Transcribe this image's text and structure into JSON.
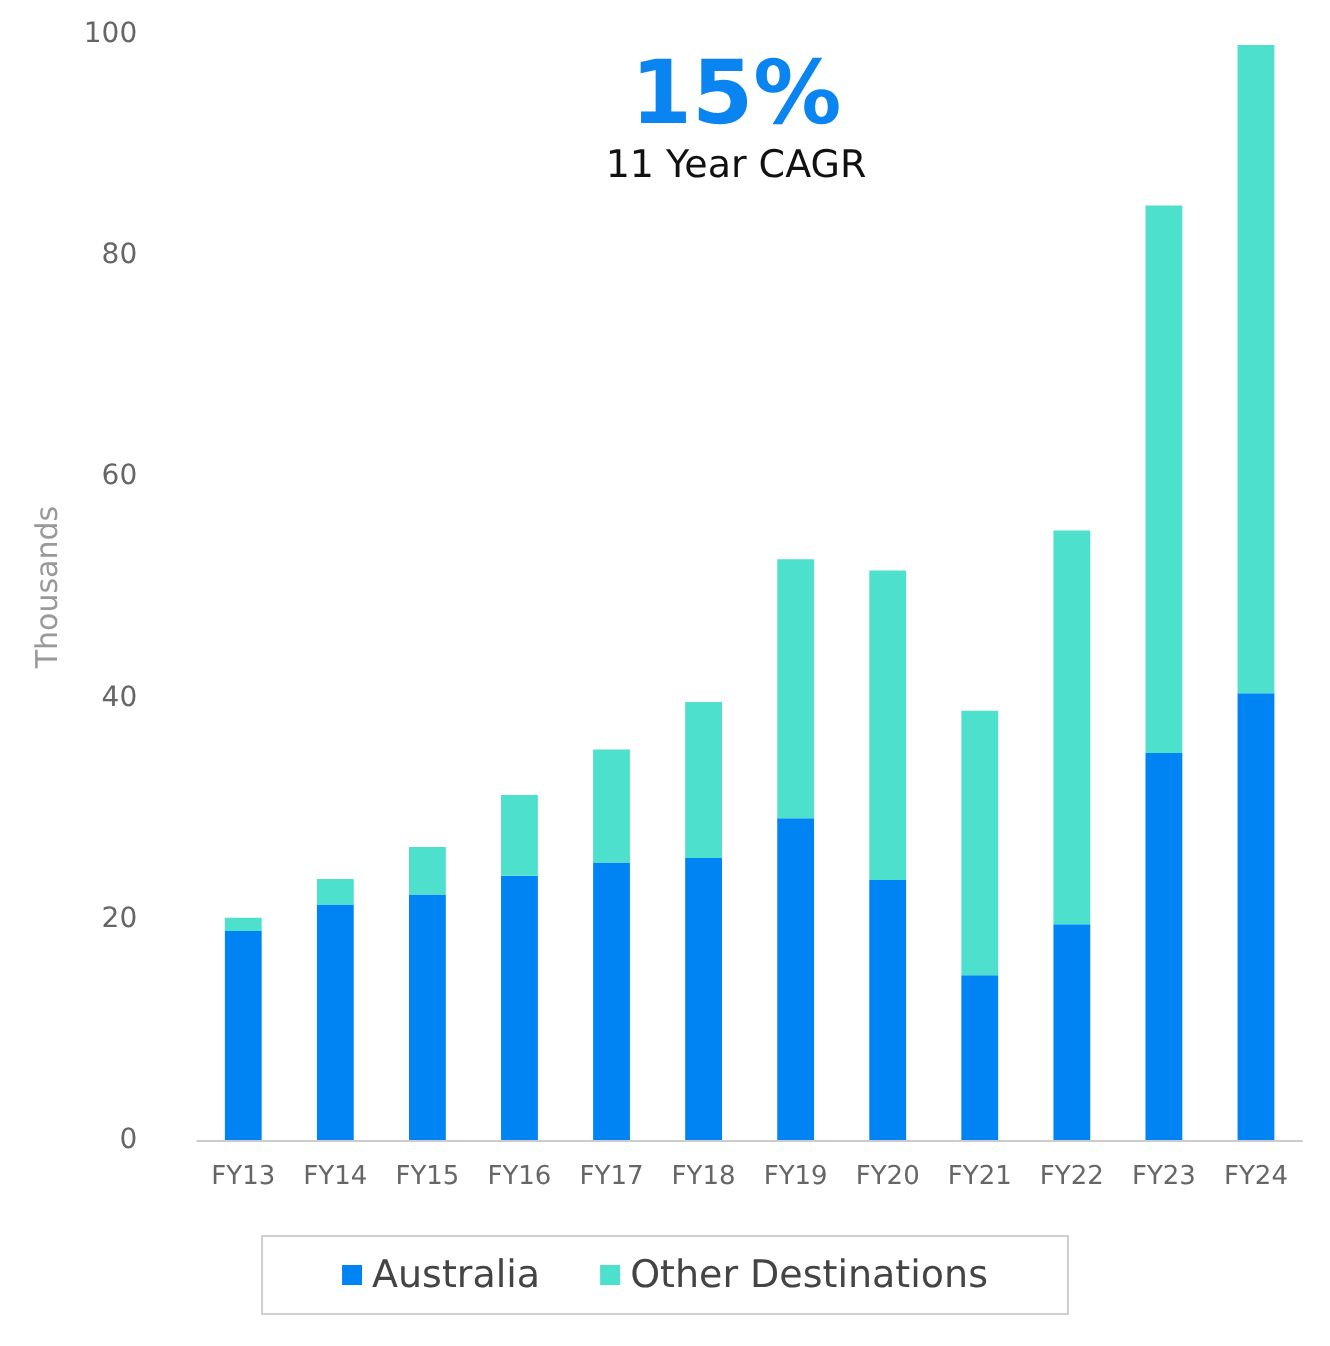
{
  "chart_data": {
    "type": "bar",
    "stacked": true,
    "title": "15%",
    "subtitle": "11 Year CAGR",
    "ylabel": "Thousands",
    "categories": [
      "FY13",
      "FY14",
      "FY15",
      "FY16",
      "FY17",
      "FY18",
      "FY19",
      "FY20",
      "FY21",
      "FY22",
      "FY23",
      "FY24"
    ],
    "series": [
      {
        "name": "Australia",
        "color": "#0084f4",
        "values": [
          18.9,
          21.3,
          22.2,
          23.9,
          25.1,
          25.5,
          29.1,
          23.5,
          14.9,
          19.5,
          35.0,
          40.4
        ]
      },
      {
        "name": "Other Destinations",
        "color": "#4de0cc",
        "values": [
          1.2,
          2.3,
          4.3,
          7.3,
          10.2,
          14.1,
          23.4,
          28.0,
          23.9,
          35.6,
          49.5,
          58.6
        ]
      }
    ],
    "ylim": [
      0,
      100
    ],
    "yticks": [
      0,
      20,
      40,
      60,
      80,
      100
    ],
    "grid": false,
    "legend": "bottom"
  }
}
